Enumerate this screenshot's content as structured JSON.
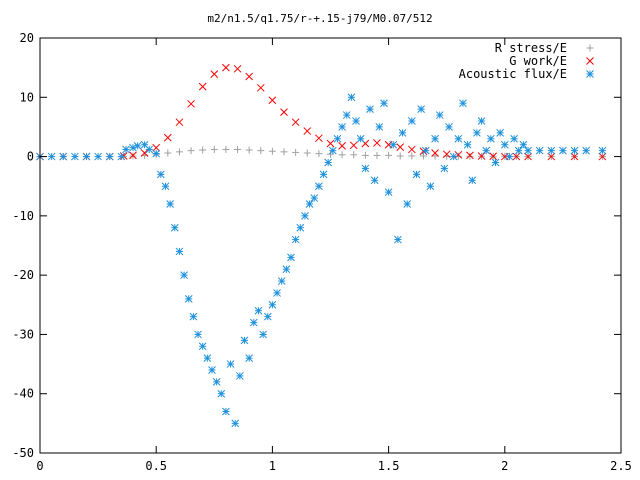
{
  "chart_data": {
    "type": "scatter",
    "title": "m2/n1.5/q1.75/r-+.15-j79/M0.07/512",
    "xlabel": "",
    "ylabel": "",
    "xlim": [
      0,
      2.5
    ],
    "ylim": [
      -50,
      20
    ],
    "xticks": [
      0,
      0.5,
      1,
      1.5,
      2,
      2.5
    ],
    "xtick_labels": [
      "0",
      "0.5",
      "1",
      "1.5",
      "2",
      "2.5"
    ],
    "yticks": [
      -50,
      -40,
      -30,
      -20,
      -10,
      0,
      10,
      20
    ],
    "ytick_labels": [
      "-50",
      "-40",
      "-30",
      "-20",
      "-10",
      "0",
      "10",
      "20"
    ],
    "grid": false,
    "legend_position": "top-right",
    "series": [
      {
        "name": "R stress/E",
        "marker": "plus",
        "color": "#a0a0a0",
        "x": [
          0.0,
          0.1,
          0.2,
          0.3,
          0.36,
          0.4,
          0.45,
          0.5,
          0.55,
          0.6,
          0.65,
          0.7,
          0.75,
          0.8,
          0.85,
          0.9,
          0.95,
          1.0,
          1.05,
          1.1,
          1.15,
          1.2,
          1.25,
          1.3,
          1.35,
          1.4,
          1.45,
          1.5,
          1.55,
          1.6,
          1.65,
          1.7,
          1.75,
          1.8,
          1.85,
          1.9,
          1.95,
          2.0,
          2.05,
          2.1,
          2.2,
          2.3,
          2.42
        ],
        "y": [
          0,
          0,
          0,
          0,
          0.05,
          0.1,
          0.2,
          0.4,
          0.6,
          0.8,
          1.0,
          1.1,
          1.2,
          1.2,
          1.2,
          1.1,
          1.0,
          0.9,
          0.8,
          0.7,
          0.6,
          0.5,
          0.4,
          0.3,
          0.3,
          0.2,
          0.2,
          0.2,
          0.1,
          0.1,
          0.1,
          0.1,
          0.05,
          0.05,
          0.05,
          0.05,
          0.05,
          0.05,
          0,
          0,
          0,
          0,
          0
        ]
      },
      {
        "name": "G work/E",
        "marker": "cross",
        "color": "#ff0000",
        "x": [
          0.0,
          0.1,
          0.2,
          0.3,
          0.36,
          0.4,
          0.45,
          0.5,
          0.55,
          0.6,
          0.65,
          0.7,
          0.75,
          0.8,
          0.85,
          0.9,
          0.95,
          1.0,
          1.05,
          1.1,
          1.15,
          1.2,
          1.25,
          1.3,
          1.35,
          1.4,
          1.45,
          1.5,
          1.55,
          1.6,
          1.65,
          1.7,
          1.75,
          1.8,
          1.85,
          1.9,
          1.95,
          2.0,
          2.05,
          2.1,
          2.2,
          2.3,
          2.42
        ],
        "y": [
          0,
          0,
          0,
          0,
          0.1,
          0.2,
          0.6,
          1.5,
          3.2,
          5.8,
          8.9,
          11.8,
          13.9,
          15.0,
          14.8,
          13.5,
          11.6,
          9.5,
          7.5,
          5.8,
          4.3,
          3.1,
          2.2,
          1.8,
          1.9,
          2.2,
          2.3,
          2.0,
          1.6,
          1.2,
          0.9,
          0.6,
          0.4,
          0.3,
          0.2,
          0.1,
          0.05,
          0,
          0,
          0,
          0,
          0,
          0
        ]
      },
      {
        "name": "Acoustic flux/E",
        "marker": "star",
        "color": "#1e90dc",
        "x": [
          0.0,
          0.05,
          0.1,
          0.15,
          0.2,
          0.25,
          0.3,
          0.35,
          0.37,
          0.4,
          0.42,
          0.45,
          0.47,
          0.5,
          0.52,
          0.54,
          0.56,
          0.58,
          0.6,
          0.62,
          0.64,
          0.66,
          0.68,
          0.7,
          0.72,
          0.74,
          0.76,
          0.78,
          0.8,
          0.82,
          0.84,
          0.86,
          0.88,
          0.9,
          0.92,
          0.94,
          0.96,
          0.98,
          1.0,
          1.02,
          1.04,
          1.06,
          1.08,
          1.1,
          1.12,
          1.14,
          1.16,
          1.18,
          1.2,
          1.22,
          1.24,
          1.26,
          1.28,
          1.3,
          1.32,
          1.34,
          1.36,
          1.38,
          1.4,
          1.42,
          1.44,
          1.46,
          1.48,
          1.5,
          1.52,
          1.54,
          1.56,
          1.58,
          1.6,
          1.62,
          1.64,
          1.66,
          1.68,
          1.7,
          1.72,
          1.74,
          1.76,
          1.78,
          1.8,
          1.82,
          1.84,
          1.86,
          1.88,
          1.9,
          1.92,
          1.94,
          1.96,
          1.98,
          2.0,
          2.02,
          2.04,
          2.06,
          2.08,
          2.1,
          2.15,
          2.2,
          2.25,
          2.3,
          2.35,
          2.42
        ],
        "y": [
          0,
          0,
          0,
          0,
          0,
          0,
          0,
          0,
          1.2,
          1.5,
          1.8,
          2.0,
          1.2,
          0.5,
          -3,
          -5,
          -8,
          -12,
          -16,
          -20,
          -24,
          -27,
          -30,
          -32,
          -34,
          -36,
          -38,
          -40,
          -43,
          -35,
          -45,
          -37,
          -31,
          -34,
          -28,
          -26,
          -30,
          -27,
          -25,
          -23,
          -21,
          -19,
          -17,
          -14,
          -12,
          -10,
          -8,
          -7,
          -5,
          -3,
          -1,
          1,
          3,
          5,
          7,
          10,
          6,
          3,
          -2,
          8,
          -4,
          5,
          9,
          -6,
          2,
          -14,
          4,
          -8,
          6,
          -3,
          8,
          1,
          -5,
          3,
          7,
          -2,
          5,
          0,
          3,
          9,
          2,
          -4,
          4,
          6,
          1,
          3,
          -1,
          4,
          2,
          0,
          3,
          1,
          2,
          1,
          1,
          1,
          1,
          1,
          1,
          1
        ]
      }
    ]
  }
}
